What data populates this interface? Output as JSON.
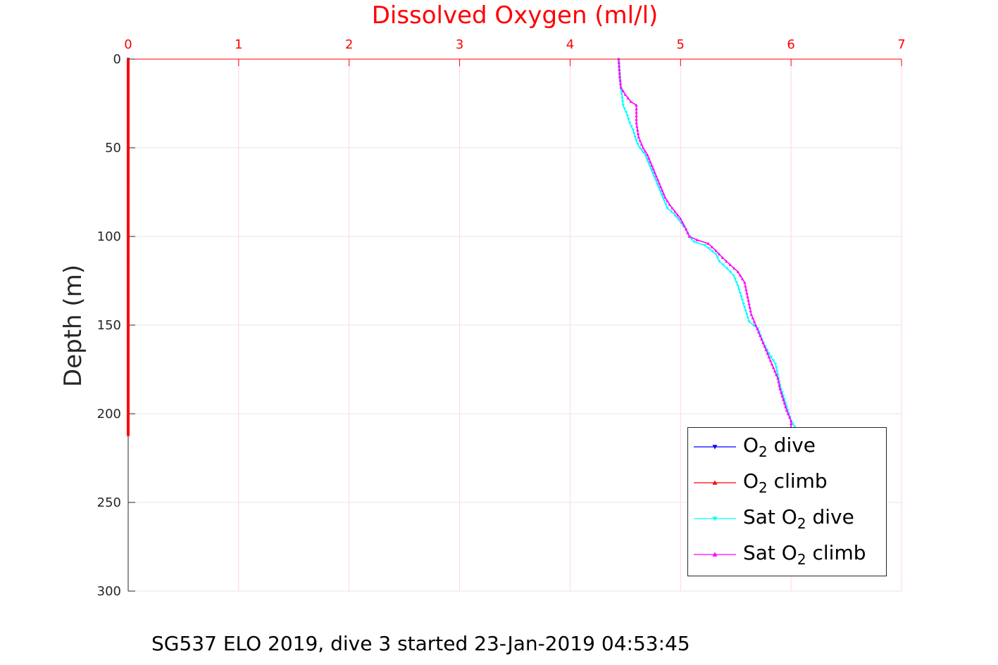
{
  "chart_data": {
    "type": "line",
    "title": "Dissolved Oxygen (ml/l)",
    "ylabel": "Depth (m)",
    "caption": "SG537 ELO 2019, dive 3 started 23-Jan-2019 04:53:45",
    "xlim": [
      0,
      7
    ],
    "ylim": [
      0,
      300
    ],
    "y_reversed": true,
    "x_axis_position": "top",
    "grid": true,
    "legend_location": "bottom-right",
    "x_ticks": [
      "0",
      "1",
      "2",
      "3",
      "4",
      "5",
      "6",
      "7"
    ],
    "y_ticks": [
      "0",
      "50",
      "100",
      "150",
      "200",
      "250",
      "300"
    ],
    "series": [
      {
        "name": "O2 dive",
        "legend_text": {
          "pre": "O",
          "sub": "2",
          "post": " dive"
        },
        "color": "#0000ff",
        "marker": "triangle-down",
        "points": [
          [
            0.0,
            0
          ],
          [
            0.0,
            30
          ],
          [
            0.0,
            60
          ],
          [
            0.0,
            90
          ],
          [
            0.0,
            120
          ],
          [
            0.0,
            150
          ],
          [
            0.0,
            180
          ],
          [
            0.0,
            210
          ]
        ]
      },
      {
        "name": "O2 climb",
        "legend_text": {
          "pre": "O",
          "sub": "2",
          "post": " climb"
        },
        "color": "#ff0000",
        "marker": "triangle-up",
        "points": [
          [
            0.0,
            0
          ],
          [
            0.0,
            25
          ],
          [
            0.0,
            50
          ],
          [
            0.0,
            75
          ],
          [
            0.0,
            100
          ],
          [
            0.0,
            125
          ],
          [
            0.0,
            150
          ],
          [
            0.0,
            175
          ],
          [
            0.0,
            200
          ],
          [
            0.0,
            212
          ]
        ]
      },
      {
        "name": "Sat O2 dive",
        "legend_text": {
          "pre": "Sat O",
          "sub": "2",
          "post": " dive"
        },
        "color": "#00ffff",
        "marker": "triangle-down",
        "points": [
          [
            4.44,
            0
          ],
          [
            4.45,
            10
          ],
          [
            4.46,
            16
          ],
          [
            4.48,
            26
          ],
          [
            4.52,
            32
          ],
          [
            4.54,
            36
          ],
          [
            4.57,
            40
          ],
          [
            4.6,
            46
          ],
          [
            4.63,
            50
          ],
          [
            4.68,
            54
          ],
          [
            4.72,
            60
          ],
          [
            4.76,
            66
          ],
          [
            4.8,
            72
          ],
          [
            4.84,
            78
          ],
          [
            4.88,
            84
          ],
          [
            4.95,
            88
          ],
          [
            5.0,
            92
          ],
          [
            5.05,
            96
          ],
          [
            5.08,
            100
          ],
          [
            5.12,
            103
          ],
          [
            5.22,
            105
          ],
          [
            5.32,
            110
          ],
          [
            5.35,
            114
          ],
          [
            5.42,
            118
          ],
          [
            5.48,
            122
          ],
          [
            5.52,
            128
          ],
          [
            5.55,
            134
          ],
          [
            5.58,
            140
          ],
          [
            5.62,
            148
          ],
          [
            5.7,
            152
          ],
          [
            5.75,
            160
          ],
          [
            5.8,
            166
          ],
          [
            5.86,
            172
          ],
          [
            5.88,
            178
          ],
          [
            5.9,
            184
          ],
          [
            5.93,
            190
          ],
          [
            5.96,
            196
          ],
          [
            6.0,
            204
          ],
          [
            6.05,
            209
          ]
        ]
      },
      {
        "name": "Sat O2 climb",
        "legend_text": {
          "pre": "Sat O",
          "sub": "2",
          "post": " climb"
        },
        "color": "#ff00ff",
        "marker": "triangle-up",
        "points": [
          [
            4.44,
            0
          ],
          [
            4.45,
            10
          ],
          [
            4.46,
            16
          ],
          [
            4.5,
            20
          ],
          [
            4.55,
            24
          ],
          [
            4.6,
            26
          ],
          [
            4.6,
            30
          ],
          [
            4.6,
            36
          ],
          [
            4.62,
            44
          ],
          [
            4.66,
            50
          ],
          [
            4.7,
            54
          ],
          [
            4.74,
            60
          ],
          [
            4.78,
            66
          ],
          [
            4.82,
            72
          ],
          [
            4.86,
            78
          ],
          [
            4.9,
            82
          ],
          [
            4.95,
            86
          ],
          [
            5.0,
            90
          ],
          [
            5.05,
            96
          ],
          [
            5.08,
            100
          ],
          [
            5.15,
            102
          ],
          [
            5.25,
            104
          ],
          [
            5.32,
            108
          ],
          [
            5.38,
            112
          ],
          [
            5.45,
            116
          ],
          [
            5.52,
            120
          ],
          [
            5.58,
            126
          ],
          [
            5.6,
            132
          ],
          [
            5.62,
            138
          ],
          [
            5.64,
            144
          ],
          [
            5.68,
            150
          ],
          [
            5.72,
            156
          ],
          [
            5.76,
            162
          ],
          [
            5.8,
            168
          ],
          [
            5.84,
            174
          ],
          [
            5.88,
            180
          ],
          [
            5.9,
            186
          ],
          [
            5.93,
            192
          ],
          [
            5.96,
            198
          ],
          [
            6.0,
            204
          ],
          [
            6.0,
            209
          ]
        ]
      }
    ]
  }
}
